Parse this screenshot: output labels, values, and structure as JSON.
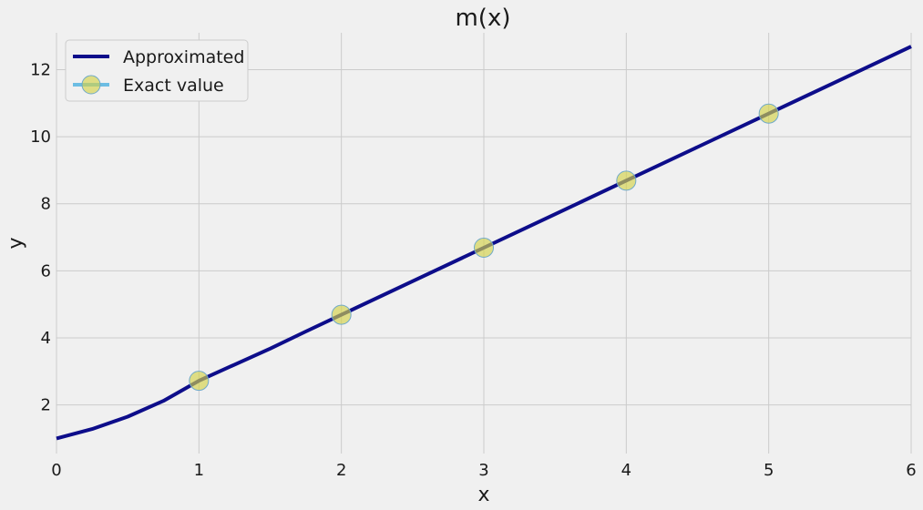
{
  "chart_data": {
    "type": "line",
    "title": "m(x)",
    "xlabel": "x",
    "ylabel": "y",
    "xlim": [
      0,
      6
    ],
    "ylim": [
      0.55,
      13.1
    ],
    "x_ticks": [
      0,
      1,
      2,
      3,
      4,
      5,
      6
    ],
    "y_ticks": [
      2,
      4,
      6,
      8,
      10,
      12
    ],
    "grid": true,
    "legend_position": "top-left",
    "series": [
      {
        "name": "Approximated",
        "style": "line",
        "color": "#0d0d8a",
        "x": [
          0,
          0.25,
          0.5,
          0.75,
          1.0,
          1.25,
          1.5,
          1.75,
          2.0,
          2.5,
          3.0,
          3.5,
          4.0,
          4.5,
          5.0,
          5.5,
          6.0
        ],
        "y": [
          1.0,
          1.28,
          1.65,
          2.12,
          2.72,
          3.2,
          3.68,
          4.19,
          4.69,
          5.69,
          6.69,
          7.69,
          8.69,
          9.69,
          10.69,
          11.69,
          12.69
        ]
      },
      {
        "name": "Exact value",
        "style": "markers",
        "marker_fill": "#d4d24a",
        "marker_edge": "#6fa9c9",
        "legend_line_color": "#6cbde3",
        "x": [
          1,
          2,
          3,
          4,
          5
        ],
        "y": [
          2.72,
          4.69,
          6.69,
          8.69,
          10.69
        ]
      }
    ]
  }
}
